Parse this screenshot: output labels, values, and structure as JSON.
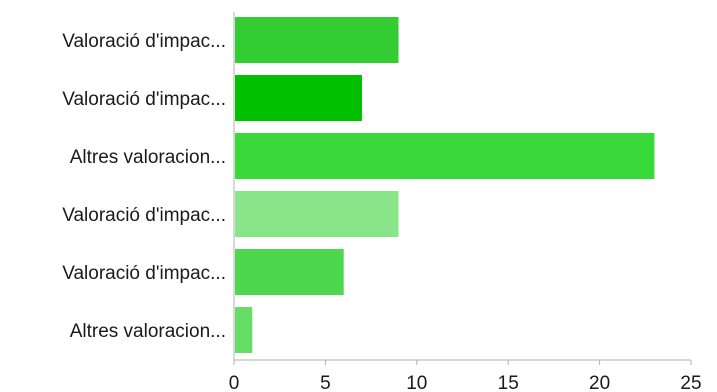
{
  "chart_data": {
    "type": "bar",
    "orientation": "horizontal",
    "title": "",
    "xlabel": "",
    "ylabel": "",
    "categories": [
      "Valoració d'impac...",
      "Valoració d'impac...",
      "Altres valoracion...",
      "Valoració d'impac...",
      "Valoració d'impac...",
      "Altres valoracion..."
    ],
    "values": [
      9,
      7,
      23,
      9,
      6,
      1
    ],
    "colors": [
      "#33cc33",
      "#00c000",
      "#3ad93a",
      "#88e588",
      "#4fd64f",
      "#66dd66"
    ],
    "xlim": [
      0,
      25
    ],
    "xticks": [
      "0",
      "5",
      "10",
      "15",
      "20",
      "25"
    ],
    "grid": false,
    "legend": "none"
  }
}
